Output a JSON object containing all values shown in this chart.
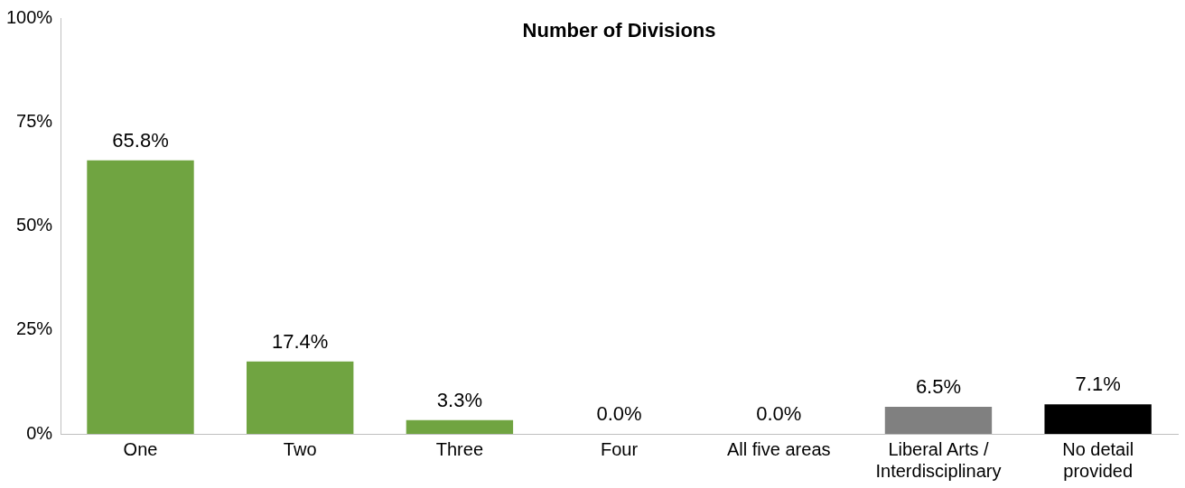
{
  "chart_data": {
    "type": "bar",
    "title": "Number of Divisions",
    "categories": [
      "One",
      "Two",
      "Three",
      "Four",
      "All five areas",
      "Liberal Arts / Interdisciplinary",
      "No detail provided"
    ],
    "values": [
      65.8,
      17.4,
      3.3,
      0.0,
      0.0,
      6.5,
      7.1
    ],
    "colors": [
      "#70a441",
      "#70a441",
      "#70a441",
      "#70a441",
      "#70a441",
      "#808080",
      "#000000"
    ],
    "value_labels": [
      "65.8%",
      "17.4%",
      "3.3%",
      "0.0%",
      "0.0%",
      "6.5%",
      "7.1%"
    ],
    "ylim": [
      0,
      100
    ],
    "yticks": [
      {
        "value": 0,
        "label": "0%"
      },
      {
        "value": 25,
        "label": "25%"
      },
      {
        "value": 50,
        "label": "50%"
      },
      {
        "value": 75,
        "label": "75%"
      },
      {
        "value": 100,
        "label": "100%"
      }
    ],
    "grid": false,
    "legend": false
  }
}
